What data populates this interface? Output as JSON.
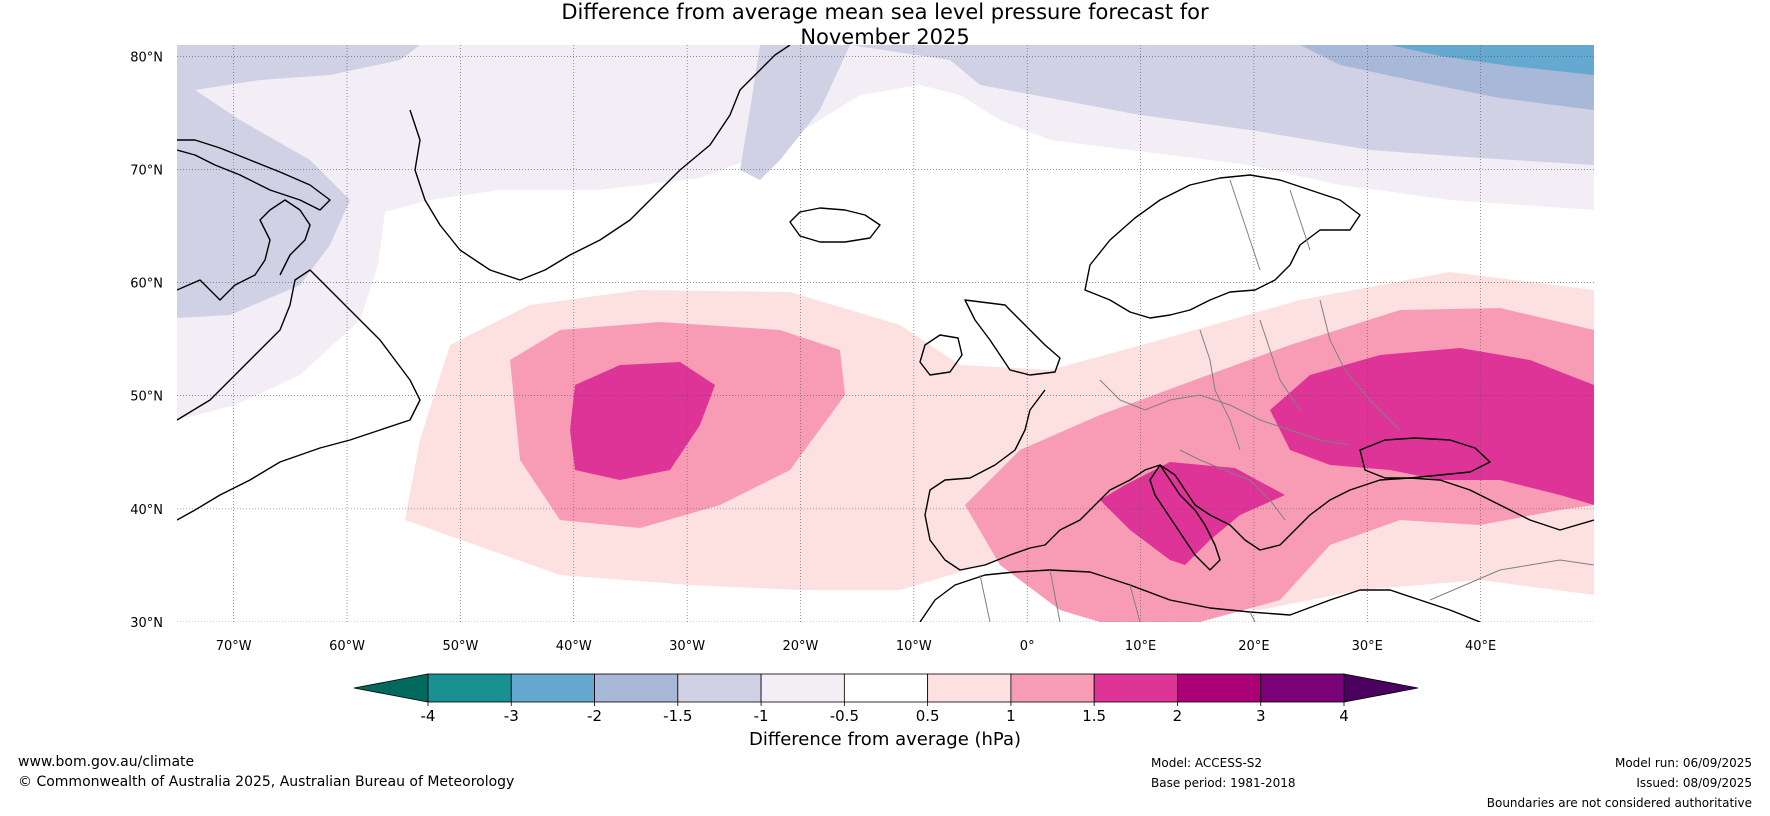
{
  "title": {
    "line1": "Difference from average mean sea level pressure forecast for",
    "line2": "November 2025"
  },
  "map": {
    "lon_range": [
      -75,
      50
    ],
    "lat_range": [
      30,
      81
    ],
    "lat_ticks": [
      {
        "value": 80,
        "label": "80°N"
      },
      {
        "value": 70,
        "label": "70°N"
      },
      {
        "value": 60,
        "label": "60°N"
      },
      {
        "value": 50,
        "label": "50°N"
      },
      {
        "value": 40,
        "label": "40°N"
      },
      {
        "value": 30,
        "label": "30°N"
      }
    ],
    "lon_ticks": [
      {
        "value": -70,
        "label": "70°W"
      },
      {
        "value": -60,
        "label": "60°W"
      },
      {
        "value": -50,
        "label": "50°W"
      },
      {
        "value": -40,
        "label": "40°W"
      },
      {
        "value": -30,
        "label": "30°W"
      },
      {
        "value": -20,
        "label": "20°W"
      },
      {
        "value": -10,
        "label": "10°W"
      },
      {
        "value": 0,
        "label": "0°"
      },
      {
        "value": 10,
        "label": "10°E"
      },
      {
        "value": 20,
        "label": "20°E"
      },
      {
        "value": 30,
        "label": "30°E"
      },
      {
        "value": 40,
        "label": "40°E"
      }
    ]
  },
  "colorbar": {
    "title": "Difference from average (hPa)",
    "labels": [
      "-4",
      "-3",
      "-2",
      "-1.5",
      "-1",
      "-0.5",
      "0.5",
      "1",
      "1.5",
      "2",
      "3",
      "4"
    ],
    "colors": [
      "#1b9093",
      "#65a9d1",
      "#a7b8d8",
      "#d1d1e6",
      "#f3edf6",
      "#ffffff",
      "#fde0e0",
      "#f89cb6",
      "#de3497",
      "#ac0077",
      "#7a0177"
    ],
    "under_color": "#006a5e",
    "over_color": "#4a005f"
  },
  "footer": {
    "website": "www.bom.gov.au/climate",
    "copyright": "© Commonwealth of Australia 2025, Australian Bureau of Meteorology",
    "model": "Model: ACCESS-S2",
    "base_period": "Base period: 1981-2018",
    "model_run": "Model run: 06/09/2025",
    "issued": "Issued: 08/09/2025",
    "disclaimer": "Boundaries are not considered authoritative"
  }
}
